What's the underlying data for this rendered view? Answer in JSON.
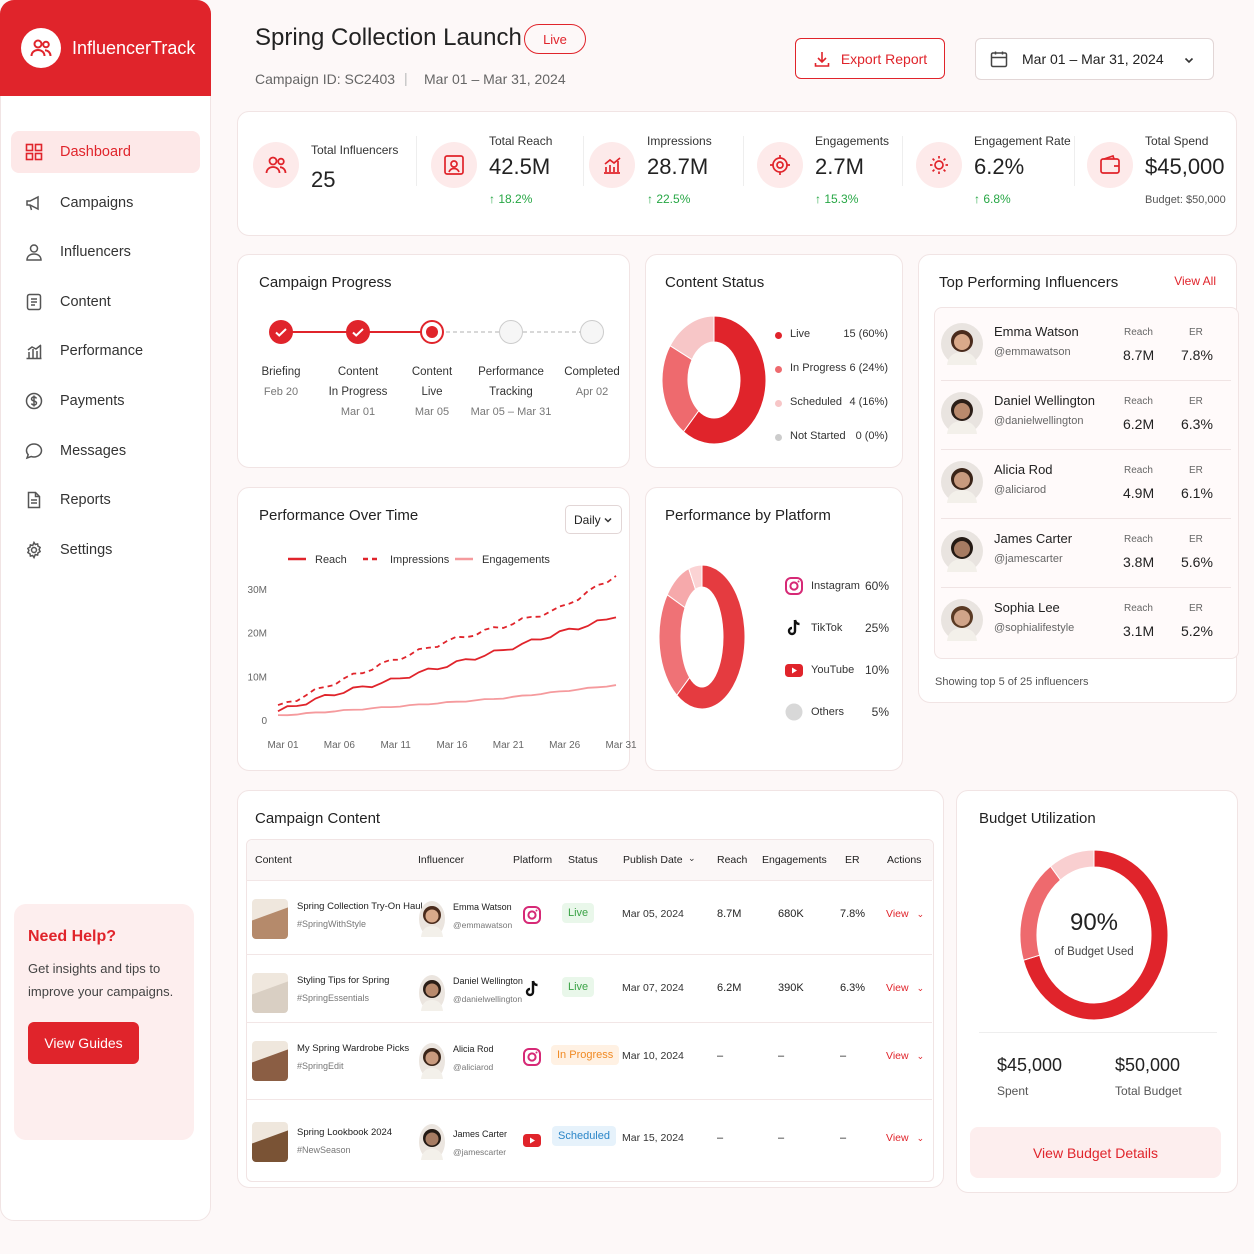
{
  "brand": {
    "name": "InfluencerTrack"
  },
  "sidebar": {
    "items": [
      {
        "label": "Dashboard"
      },
      {
        "label": "Campaigns"
      },
      {
        "label": "Influencers"
      },
      {
        "label": "Content"
      },
      {
        "label": "Performance"
      },
      {
        "label": "Payments"
      },
      {
        "label": "Messages"
      },
      {
        "label": "Reports"
      },
      {
        "label": "Settings"
      }
    ],
    "help": {
      "title": "Need Help?",
      "text_line1": "Get insights and tips to",
      "text_line2": "improve your campaigns.",
      "button": "View Guides"
    }
  },
  "header": {
    "title": "Spring Collection Launch",
    "status": "Live",
    "campaign_id": "Campaign ID: SC2403",
    "separator": "|",
    "date_range": "Mar 01 – Mar 31, 2024",
    "export_label": "Export Report",
    "date_picker": "Mar 01 – Mar 31, 2024"
  },
  "stats": [
    {
      "label": "Total Influencers",
      "value": "25",
      "change": ""
    },
    {
      "label": "Total Reach",
      "value": "42.5M",
      "change": "↑ 18.2%"
    },
    {
      "label": "Impressions",
      "value": "28.7M",
      "change": "↑ 22.5%"
    },
    {
      "label": "Engagements",
      "value": "2.7M",
      "change": "↑ 15.3%"
    },
    {
      "label": "Engagement Rate",
      "value": "6.2%",
      "change": "↑ 6.8%"
    },
    {
      "label": "Total Spend",
      "value": "$45,000",
      "change": "Budget: $50,000"
    }
  ],
  "progress": {
    "title": "Campaign Progress",
    "steps": [
      {
        "line1": "Briefing",
        "line2": "",
        "date": "Feb 20",
        "state": "done"
      },
      {
        "line1": "Content",
        "line2": "In Progress",
        "date": "Mar 01",
        "state": "done"
      },
      {
        "line1": "Content",
        "line2": "Live",
        "date": "Mar 05",
        "state": "current"
      },
      {
        "line1": "Performance",
        "line2": "Tracking",
        "date": "Mar 05 – Mar 31",
        "state": "todo"
      },
      {
        "line1": "Completed",
        "line2": "",
        "date": "Apr 02",
        "state": "todo"
      }
    ]
  },
  "content_status": {
    "title": "Content Status",
    "items": [
      {
        "label": "Live",
        "value": "15 (60%)",
        "pct": 60,
        "color": "#e0242b"
      },
      {
        "label": "In Progress",
        "value": "6 (24%)",
        "pct": 24,
        "color": "#ee6a6e"
      },
      {
        "label": "Scheduled",
        "value": "4 (16%)",
        "pct": 16,
        "color": "#f7c6c7"
      },
      {
        "label": "Not Started",
        "value": "0 (0%)",
        "pct": 0,
        "color": "#cccccc"
      }
    ]
  },
  "top_influencers": {
    "title": "Top Performing Influencers",
    "view_all": "View All",
    "reach_label": "Reach",
    "er_label": "ER",
    "footer": "Showing top 5 of 25 influencers",
    "items": [
      {
        "name": "Emma Watson",
        "handle": "@emmawatson",
        "reach": "8.7M",
        "er": "7.8%"
      },
      {
        "name": "Daniel Wellington",
        "handle": "@danielwellington",
        "reach": "6.2M",
        "er": "6.3%"
      },
      {
        "name": "Alicia Rod",
        "handle": "@aliciarod",
        "reach": "4.9M",
        "er": "6.1%"
      },
      {
        "name": "James Carter",
        "handle": "@jamescarter",
        "reach": "3.8M",
        "er": "5.6%"
      },
      {
        "name": "Sophia Lee",
        "handle": "@sophialifestyle",
        "reach": "3.1M",
        "er": "5.2%"
      }
    ]
  },
  "performance": {
    "title": "Performance Over Time",
    "granularity": "Daily"
  },
  "chart_data": [
    {
      "type": "line",
      "title": "Performance Over Time",
      "x": [
        "Mar 01",
        "Mar 06",
        "Mar 11",
        "Mar 16",
        "Mar 21",
        "Mar 26",
        "Mar 31"
      ],
      "ylim": [
        0,
        30000000
      ],
      "yticks": [
        "0",
        "10M",
        "20M",
        "30M"
      ],
      "series": [
        {
          "name": "Reach",
          "values": [
            2000000,
            6000000,
            9000000,
            12500000,
            16000000,
            20000000,
            23500000
          ],
          "color": "#e0242b",
          "dash": ""
        },
        {
          "name": "Impressions",
          "values": [
            3000000,
            8500000,
            13500000,
            18000000,
            21500000,
            25500000,
            33000000
          ],
          "color": "#e0242b",
          "dash": "5,4"
        },
        {
          "name": "Engagements",
          "values": [
            1000000,
            2000000,
            3000000,
            4000000,
            5000000,
            6500000,
            8000000
          ],
          "color": "#f59a9d",
          "dash": ""
        }
      ]
    },
    {
      "type": "pie",
      "title": "Performance by Platform",
      "items": [
        {
          "label": "Instagram",
          "value": "60%",
          "pct": 60,
          "color": "#e53b40"
        },
        {
          "label": "TikTok",
          "value": "25%",
          "pct": 25,
          "color": "#ef7276"
        },
        {
          "label": "YouTube",
          "value": "10%",
          "pct": 10,
          "color": "#f6a9ab"
        },
        {
          "label": "Others",
          "value": "5%",
          "pct": 5,
          "color": "#fbd3d4"
        }
      ]
    }
  ],
  "campaign_content": {
    "title": "Campaign Content",
    "headers": [
      "Content",
      "Influencer",
      "Platform",
      "Status",
      "Publish Date",
      "Reach",
      "Engagements",
      "ER",
      "Actions"
    ],
    "rows": [
      {
        "title": "Spring Collection Try-On Haul",
        "tag": "#SpringWithStyle",
        "name": "Emma Watson",
        "handle": "@emmawatson",
        "platform": "instagram",
        "status": "Live",
        "date": "Mar 05, 2024",
        "reach": "8.7M",
        "eng": "680K",
        "er": "7.8%",
        "action": "View"
      },
      {
        "title": "Styling Tips for Spring",
        "tag": "#SpringEssentials",
        "name": "Daniel Wellington",
        "handle": "@danielwellington",
        "platform": "tiktok",
        "status": "Live",
        "date": "Mar 07, 2024",
        "reach": "6.2M",
        "eng": "390K",
        "er": "6.3%",
        "action": "View"
      },
      {
        "title": "My Spring Wardrobe Picks",
        "tag": "#SpringEdit",
        "name": "Alicia Rod",
        "handle": "@aliciarod",
        "platform": "instagram",
        "status": "In Progress",
        "date": "Mar 10, 2024",
        "reach": "–",
        "eng": "–",
        "er": "–",
        "action": "View"
      },
      {
        "title": "Spring Lookbook 2024",
        "tag": "#NewSeason",
        "name": "James Carter",
        "handle": "@jamescarter",
        "platform": "youtube",
        "status": "Scheduled",
        "date": "Mar 15, 2024",
        "reach": "–",
        "eng": "–",
        "er": "–",
        "action": "View"
      }
    ]
  },
  "budget": {
    "title": "Budget Utilization",
    "percent": "90%",
    "pct": 90,
    "used_label": "of Budget Used",
    "spent": "$45,000",
    "spent_label": "Spent",
    "total": "$50,000",
    "total_label": "Total Budget",
    "button": "View Budget Details"
  }
}
